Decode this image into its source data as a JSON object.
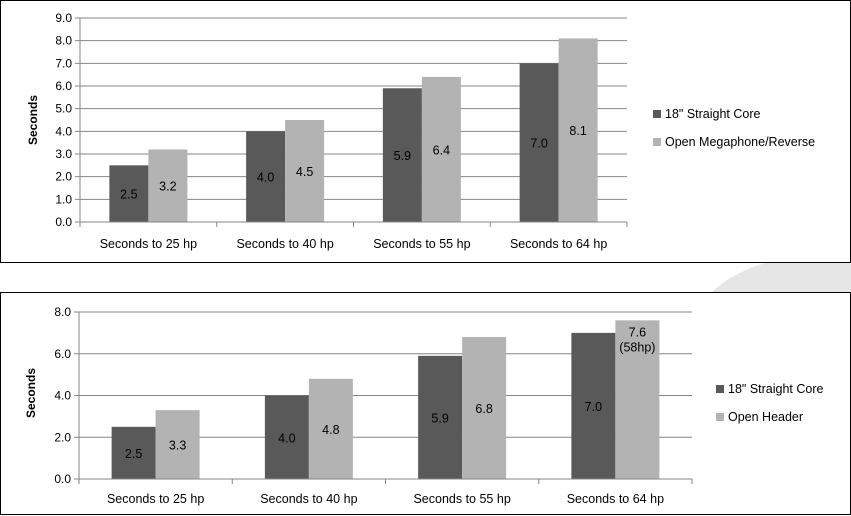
{
  "colors": {
    "series1": "#595959",
    "series2": "#b3b3b3",
    "grid": "#868686",
    "axis": "#868686"
  },
  "chart_data": [
    {
      "type": "bar",
      "categories": [
        "Seconds to 25 hp",
        "Seconds to 40 hp",
        "Seconds to 55 hp",
        "Seconds to 64 hp"
      ],
      "series": [
        {
          "name": "18\" Straight Core",
          "values": [
            2.5,
            4.0,
            5.9,
            7.0
          ],
          "labels": [
            "2.5",
            "4.0",
            "5.9",
            "7.0"
          ]
        },
        {
          "name": "Open Megaphone/Reverse",
          "values": [
            3.2,
            4.5,
            6.4,
            8.1
          ],
          "labels": [
            "3.2",
            "4.5",
            "6.4",
            "8.1"
          ]
        }
      ],
      "ylabel": "Seconds",
      "ylim": [
        0,
        9
      ],
      "yticks": [
        "0.0",
        "1.0",
        "2.0",
        "3.0",
        "4.0",
        "5.0",
        "6.0",
        "7.0",
        "8.0",
        "9.0"
      ],
      "grid": true,
      "legend": "right"
    },
    {
      "type": "bar",
      "categories": [
        "Seconds to 25 hp",
        "Seconds to 40 hp",
        "Seconds to 55 hp",
        "Seconds to 64 hp"
      ],
      "series": [
        {
          "name": "18\" Straight Core",
          "values": [
            2.5,
            4.0,
            5.9,
            7.0
          ],
          "labels": [
            "2.5",
            "4.0",
            "5.9",
            "7.0"
          ]
        },
        {
          "name": "Open Header",
          "values": [
            3.3,
            4.8,
            6.8,
            7.6
          ],
          "labels": [
            "3.3",
            "4.8",
            "6.8",
            "7.6\n(58hp)"
          ]
        }
      ],
      "ylabel": "Seconds",
      "ylim": [
        0,
        8
      ],
      "yticks": [
        "0.0",
        "2.0",
        "4.0",
        "6.0",
        "8.0"
      ],
      "grid": true,
      "legend": "right"
    }
  ]
}
